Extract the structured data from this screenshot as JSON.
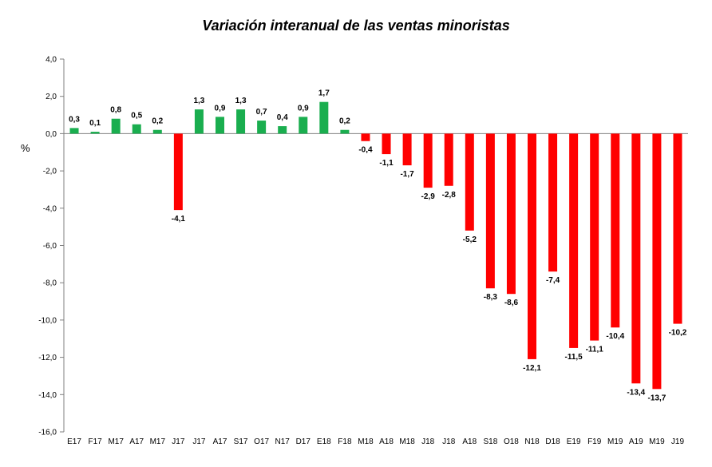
{
  "chart_data": {
    "type": "bar",
    "title": "Variación interanual de las ventas minoristas",
    "ylabel": "%",
    "xlabel": "",
    "ylim": [
      -16,
      4
    ],
    "ytick_step": 2,
    "ytick_labels": [
      "4,0",
      "2,0",
      "0,0",
      "-2,0",
      "-4,0",
      "-6,0",
      "-8,0",
      "-10,0",
      "-12,0",
      "-14,0",
      "-16,0"
    ],
    "grid": false,
    "legend": "none",
    "colors": {
      "positive": "#1aae4f",
      "negative": "#ff0000",
      "axis": "#7f7f7f"
    },
    "categories": [
      "E17",
      "F17",
      "M17",
      "A17",
      "M17",
      "J17",
      "J17",
      "A17",
      "S17",
      "O17",
      "N17",
      "D17",
      "E18",
      "F18",
      "M18",
      "A18",
      "M18",
      "J18",
      "J18",
      "A18",
      "S18",
      "O18",
      "N18",
      "D18",
      "E19",
      "F19",
      "M19",
      "A19",
      "M19",
      "J19"
    ],
    "values": [
      0.3,
      0.1,
      0.8,
      0.5,
      0.2,
      -4.1,
      1.3,
      0.9,
      1.3,
      0.7,
      0.4,
      0.9,
      1.7,
      0.2,
      -0.4,
      -1.1,
      -1.7,
      -2.9,
      -2.8,
      -5.2,
      -8.3,
      -8.6,
      -12.1,
      -7.4,
      -11.5,
      -11.1,
      -10.4,
      -13.4,
      -13.7,
      -10.2
    ],
    "value_labels": [
      "0,3",
      "0,1",
      "0,8",
      "0,5",
      "0,2",
      "-4,1",
      "1,3",
      "0,9",
      "1,3",
      "0,7",
      "0,4",
      "0,9",
      "1,7",
      "0,2",
      "-0,4",
      "-1,1",
      "-1,7",
      "-2,9",
      "-2,8",
      "-5,2",
      "-8,3",
      "-8,6",
      "-12,1",
      "-7,4",
      "-11,5",
      "-11,1",
      "-10,4",
      "-13,4",
      "-13,7",
      "-10,2"
    ]
  }
}
